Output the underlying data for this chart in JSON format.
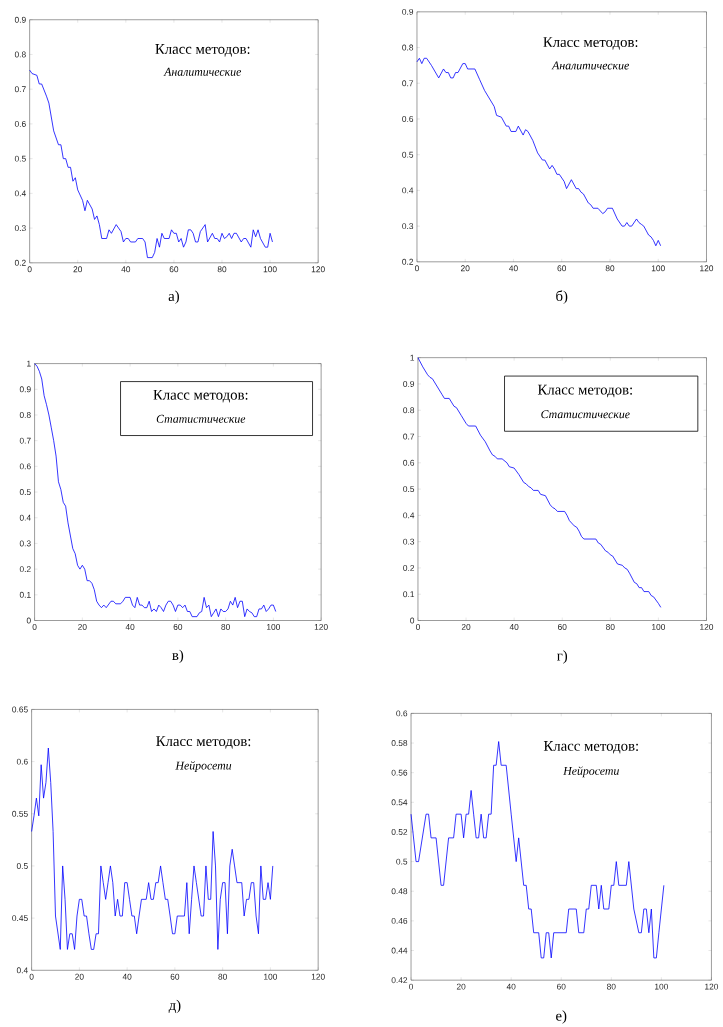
{
  "chart_data": [
    {
      "type": "line",
      "title": "Класс методов:",
      "subtitle": "Аналитические",
      "annotations": [
        "а)"
      ],
      "xlim": [
        0,
        120
      ],
      "ylim": [
        0.2,
        0.9
      ],
      "xticks": [
        0,
        20,
        40,
        60,
        80,
        100,
        120
      ],
      "yticks": [
        0.2,
        0.3,
        0.4,
        0.5,
        0.6,
        0.7,
        0.8,
        0.9
      ],
      "series": [
        {
          "color": "#0000ff",
          "x": [
            0,
            1,
            3,
            4,
            5,
            7,
            8,
            9,
            10,
            12,
            13,
            14,
            15,
            16,
            17,
            18,
            19,
            20,
            22,
            23,
            24,
            26,
            27,
            28,
            29,
            30,
            32,
            33,
            34,
            36,
            38,
            39,
            40,
            41,
            42,
            44,
            45,
            47,
            48,
            49,
            51,
            52,
            53,
            54,
            55,
            56,
            58,
            59,
            60,
            61,
            62,
            63,
            64,
            65,
            66,
            67,
            68,
            69,
            70,
            71,
            73,
            74,
            76,
            77,
            78,
            79,
            80,
            81,
            82,
            83,
            84,
            85,
            86,
            88,
            89,
            90,
            92,
            93,
            94,
            95,
            96,
            98,
            99,
            100,
            101
          ],
          "values": [
            0.755,
            0.745,
            0.74,
            0.715,
            0.715,
            0.68,
            0.66,
            0.62,
            0.58,
            0.54,
            0.54,
            0.5,
            0.5,
            0.475,
            0.475,
            0.435,
            0.445,
            0.41,
            0.38,
            0.35,
            0.38,
            0.355,
            0.325,
            0.335,
            0.31,
            0.27,
            0.27,
            0.295,
            0.285,
            0.31,
            0.29,
            0.26,
            0.27,
            0.27,
            0.26,
            0.26,
            0.27,
            0.27,
            0.26,
            0.215,
            0.215,
            0.23,
            0.27,
            0.245,
            0.285,
            0.27,
            0.27,
            0.295,
            0.285,
            0.285,
            0.26,
            0.27,
            0.245,
            0.26,
            0.295,
            0.295,
            0.285,
            0.26,
            0.26,
            0.29,
            0.31,
            0.26,
            0.285,
            0.27,
            0.27,
            0.26,
            0.285,
            0.27,
            0.275,
            0.285,
            0.27,
            0.285,
            0.285,
            0.26,
            0.27,
            0.27,
            0.245,
            0.295,
            0.275,
            0.295,
            0.27,
            0.245,
            0.245,
            0.285,
            0.26
          ]
        }
      ]
    },
    {
      "type": "line",
      "title": "Класс методов:",
      "subtitle": "Аналитические",
      "annotations": [
        "б)"
      ],
      "xlim": [
        0,
        120
      ],
      "ylim": [
        0.2,
        0.9
      ],
      "xticks": [
        0,
        20,
        40,
        60,
        80,
        100,
        120
      ],
      "yticks": [
        0.2,
        0.3,
        0.4,
        0.5,
        0.6,
        0.7,
        0.8,
        0.9
      ],
      "series": [
        {
          "color": "#0000ff",
          "x": [
            0,
            1,
            2,
            3,
            4,
            6,
            9,
            11,
            12,
            13,
            14,
            15,
            16,
            17,
            19,
            20,
            21,
            24,
            26,
            28,
            32,
            33,
            35,
            37,
            38,
            39,
            41,
            42,
            44,
            45,
            46,
            48,
            50,
            52,
            53,
            55,
            56,
            57,
            58,
            59,
            61,
            62,
            64,
            66,
            67,
            68,
            69,
            71,
            72,
            73,
            75,
            77,
            78,
            79,
            81,
            82,
            83,
            85,
            86,
            87,
            88,
            89,
            91,
            92,
            93,
            94,
            96,
            97,
            98,
            99,
            100,
            101
          ],
          "values": [
            0.76,
            0.77,
            0.755,
            0.77,
            0.77,
            0.75,
            0.715,
            0.74,
            0.73,
            0.73,
            0.715,
            0.715,
            0.73,
            0.73,
            0.755,
            0.755,
            0.74,
            0.74,
            0.71,
            0.68,
            0.635,
            0.61,
            0.605,
            0.58,
            0.58,
            0.565,
            0.565,
            0.58,
            0.555,
            0.57,
            0.565,
            0.54,
            0.505,
            0.485,
            0.485,
            0.46,
            0.47,
            0.46,
            0.445,
            0.445,
            0.425,
            0.405,
            0.43,
            0.405,
            0.405,
            0.395,
            0.39,
            0.365,
            0.36,
            0.35,
            0.35,
            0.335,
            0.34,
            0.35,
            0.35,
            0.335,
            0.32,
            0.3,
            0.3,
            0.31,
            0.3,
            0.3,
            0.32,
            0.31,
            0.305,
            0.3,
            0.275,
            0.27,
            0.26,
            0.245,
            0.26,
            0.245
          ]
        }
      ]
    },
    {
      "type": "line",
      "title": "Класс методов:",
      "subtitle": "Статистические",
      "annotations": [
        "в)"
      ],
      "xlim": [
        0,
        120
      ],
      "ylim": [
        0,
        1
      ],
      "xticks": [
        0,
        20,
        40,
        60,
        80,
        100,
        120
      ],
      "yticks": [
        0,
        0.1,
        0.2,
        0.3,
        0.4,
        0.5,
        0.6,
        0.7,
        0.8,
        0.9,
        1
      ],
      "series": [
        {
          "color": "#0000ff",
          "x": [
            0,
            1,
            2,
            3,
            4,
            5,
            6,
            7,
            8,
            9,
            10,
            11,
            12,
            13,
            14,
            15,
            16,
            17,
            18,
            19,
            20,
            21,
            22,
            23,
            24,
            25,
            26,
            27,
            28,
            29,
            30,
            32,
            33,
            34,
            36,
            37,
            38,
            40,
            41,
            42,
            43,
            44,
            45,
            46,
            47,
            48,
            49,
            50,
            51,
            52,
            53,
            54,
            55,
            56,
            57,
            58,
            59,
            60,
            61,
            62,
            63,
            64,
            65,
            66,
            68,
            69,
            70,
            71,
            72,
            73,
            74,
            75,
            76,
            77,
            78,
            79,
            80,
            81,
            82,
            83,
            84,
            85,
            86,
            87,
            88,
            89,
            90,
            91,
            92,
            93,
            94,
            95,
            96,
            97,
            98,
            99,
            100,
            101
          ],
          "values": [
            1.0,
            0.99,
            0.97,
            0.94,
            0.875,
            0.84,
            0.8,
            0.75,
            0.7,
            0.64,
            0.54,
            0.51,
            0.46,
            0.445,
            0.38,
            0.33,
            0.28,
            0.26,
            0.215,
            0.2,
            0.215,
            0.2,
            0.155,
            0.155,
            0.145,
            0.12,
            0.075,
            0.06,
            0.05,
            0.06,
            0.05,
            0.075,
            0.075,
            0.065,
            0.065,
            0.075,
            0.09,
            0.09,
            0.06,
            0.05,
            0.09,
            0.06,
            0.06,
            0.05,
            0.05,
            0.075,
            0.035,
            0.045,
            0.035,
            0.06,
            0.05,
            0.035,
            0.06,
            0.075,
            0.075,
            0.06,
            0.035,
            0.06,
            0.06,
            0.05,
            0.06,
            0.035,
            0.035,
            0.015,
            0.015,
            0.03,
            0.035,
            0.09,
            0.05,
            0.06,
            0.015,
            0.03,
            0.045,
            0.015,
            0.045,
            0.035,
            0.035,
            0.045,
            0.075,
            0.06,
            0.09,
            0.05,
            0.075,
            0.075,
            0.015,
            0.045,
            0.035,
            0.03,
            0.015,
            0.015,
            0.045,
            0.045,
            0.06,
            0.035,
            0.045,
            0.06,
            0.06,
            0.035
          ]
        }
      ]
    },
    {
      "type": "line",
      "title": "Класс методов:",
      "subtitle": "Статистические",
      "annotations": [
        "г)"
      ],
      "xlim": [
        0,
        120
      ],
      "ylim": [
        0,
        1
      ],
      "xticks": [
        0,
        20,
        40,
        60,
        80,
        100,
        120
      ],
      "yticks": [
        0,
        0.1,
        0.2,
        0.3,
        0.4,
        0.5,
        0.6,
        0.7,
        0.8,
        0.9,
        1
      ],
      "series": [
        {
          "color": "#0000ff",
          "x": [
            0,
            2,
            4,
            5,
            6,
            8,
            10,
            11,
            13,
            15,
            16,
            18,
            20,
            21,
            24,
            26,
            28,
            30,
            31,
            32,
            33,
            35,
            37,
            38,
            40,
            42,
            44,
            45,
            46,
            47,
            48,
            50,
            51,
            53,
            55,
            56,
            57,
            58,
            61,
            62,
            63,
            65,
            66,
            67,
            68,
            69,
            74,
            75,
            76,
            78,
            79,
            80,
            81,
            83,
            85,
            86,
            87,
            88,
            90,
            91,
            92,
            93,
            94,
            96,
            97,
            98,
            100,
            101
          ],
          "values": [
            1.0,
            0.965,
            0.935,
            0.925,
            0.92,
            0.89,
            0.86,
            0.845,
            0.845,
            0.815,
            0.81,
            0.78,
            0.75,
            0.74,
            0.74,
            0.705,
            0.68,
            0.645,
            0.63,
            0.625,
            0.615,
            0.615,
            0.6,
            0.585,
            0.58,
            0.555,
            0.525,
            0.52,
            0.51,
            0.505,
            0.495,
            0.495,
            0.48,
            0.475,
            0.44,
            0.43,
            0.425,
            0.415,
            0.415,
            0.4,
            0.38,
            0.36,
            0.355,
            0.34,
            0.32,
            0.31,
            0.31,
            0.295,
            0.29,
            0.265,
            0.26,
            0.25,
            0.245,
            0.215,
            0.21,
            0.2,
            0.195,
            0.18,
            0.145,
            0.14,
            0.125,
            0.125,
            0.11,
            0.11,
            0.095,
            0.09,
            0.065,
            0.05
          ]
        }
      ]
    },
    {
      "type": "line",
      "title": "Класс методов:",
      "subtitle": "Нейросети",
      "annotations": [
        "д)"
      ],
      "xlim": [
        0,
        120
      ],
      "ylim": [
        0.4,
        0.65
      ],
      "xticks": [
        0,
        20,
        40,
        60,
        80,
        100,
        120
      ],
      "yticks": [
        0.4,
        0.45,
        0.5,
        0.55,
        0.6,
        0.65
      ],
      "series": [
        {
          "color": "#0000ff",
          "x": [
            0,
            1,
            2,
            3,
            4,
            5,
            6,
            7,
            8,
            9,
            10,
            12,
            13,
            14,
            15,
            16,
            17,
            18,
            19,
            20,
            21,
            22,
            23,
            24,
            25,
            26,
            27,
            28,
            29,
            30,
            31,
            32,
            33,
            34,
            35,
            36,
            37,
            38,
            39,
            40,
            41,
            42,
            43,
            44,
            45,
            46,
            47,
            48,
            49,
            50,
            51,
            52,
            53,
            54,
            55,
            56,
            57,
            58,
            59,
            60,
            61,
            62,
            63,
            64,
            65,
            66,
            67,
            68,
            69,
            70,
            71,
            72,
            73,
            74,
            75,
            76,
            77,
            78,
            79,
            80,
            81,
            82,
            83,
            84,
            85,
            86,
            87,
            88,
            89,
            90,
            91,
            92,
            93,
            94,
            95,
            96,
            97,
            98,
            99,
            100,
            101
          ],
          "values": [
            0.533,
            0.548,
            0.565,
            0.548,
            0.597,
            0.565,
            0.58,
            0.613,
            0.58,
            0.533,
            0.452,
            0.42,
            0.5,
            0.468,
            0.42,
            0.435,
            0.435,
            0.42,
            0.452,
            0.468,
            0.468,
            0.452,
            0.452,
            0.435,
            0.42,
            0.42,
            0.435,
            0.435,
            0.5,
            0.484,
            0.468,
            0.484,
            0.5,
            0.484,
            0.452,
            0.468,
            0.452,
            0.452,
            0.484,
            0.484,
            0.468,
            0.452,
            0.452,
            0.435,
            0.452,
            0.468,
            0.468,
            0.468,
            0.484,
            0.468,
            0.468,
            0.484,
            0.484,
            0.5,
            0.484,
            0.468,
            0.468,
            0.452,
            0.435,
            0.435,
            0.452,
            0.452,
            0.452,
            0.452,
            0.484,
            0.435,
            0.468,
            0.5,
            0.484,
            0.468,
            0.452,
            0.452,
            0.5,
            0.468,
            0.468,
            0.533,
            0.5,
            0.42,
            0.468,
            0.484,
            0.484,
            0.435,
            0.5,
            0.516,
            0.5,
            0.484,
            0.484,
            0.484,
            0.452,
            0.468,
            0.468,
            0.484,
            0.484,
            0.452,
            0.435,
            0.5,
            0.468,
            0.468,
            0.484,
            0.468,
            0.5
          ]
        }
      ]
    },
    {
      "type": "line",
      "title": "Класс методов:",
      "subtitle": "Нейросети",
      "annotations": [
        "е)"
      ],
      "xlim": [
        0,
        120
      ],
      "ylim": [
        0.42,
        0.6
      ],
      "xticks": [
        0,
        20,
        40,
        60,
        80,
        100,
        120
      ],
      "yticks": [
        0.42,
        0.44,
        0.46,
        0.48,
        0.5,
        0.52,
        0.54,
        0.56,
        0.58,
        0.6
      ],
      "series": [
        {
          "color": "#0000ff",
          "x": [
            0,
            2,
            3,
            6,
            7,
            8,
            10,
            12,
            13,
            15,
            17,
            18,
            20,
            21,
            22,
            23,
            24,
            25,
            26,
            27,
            28,
            29,
            30,
            31,
            32,
            33,
            34,
            35,
            36,
            38,
            40,
            42,
            43,
            45,
            46,
            47,
            48,
            49,
            51,
            52,
            53,
            54,
            55,
            56,
            57,
            62,
            63,
            66,
            67,
            69,
            70,
            71,
            72,
            74,
            75,
            76,
            77,
            79,
            80,
            81,
            82,
            83,
            86,
            87,
            89,
            91,
            92,
            93,
            94,
            95,
            96,
            97,
            98,
            99,
            101
          ],
          "values": [
            0.532,
            0.5,
            0.5,
            0.532,
            0.532,
            0.516,
            0.516,
            0.484,
            0.484,
            0.516,
            0.516,
            0.532,
            0.532,
            0.516,
            0.532,
            0.532,
            0.548,
            0.532,
            0.516,
            0.516,
            0.532,
            0.516,
            0.516,
            0.532,
            0.532,
            0.565,
            0.565,
            0.581,
            0.565,
            0.565,
            0.532,
            0.5,
            0.516,
            0.484,
            0.484,
            0.468,
            0.468,
            0.452,
            0.452,
            0.435,
            0.435,
            0.452,
            0.452,
            0.435,
            0.452,
            0.452,
            0.468,
            0.468,
            0.452,
            0.452,
            0.468,
            0.468,
            0.484,
            0.484,
            0.468,
            0.484,
            0.468,
            0.468,
            0.484,
            0.484,
            0.5,
            0.484,
            0.484,
            0.5,
            0.468,
            0.452,
            0.452,
            0.468,
            0.468,
            0.452,
            0.468,
            0.435,
            0.435,
            0.452,
            0.484
          ]
        }
      ]
    }
  ]
}
